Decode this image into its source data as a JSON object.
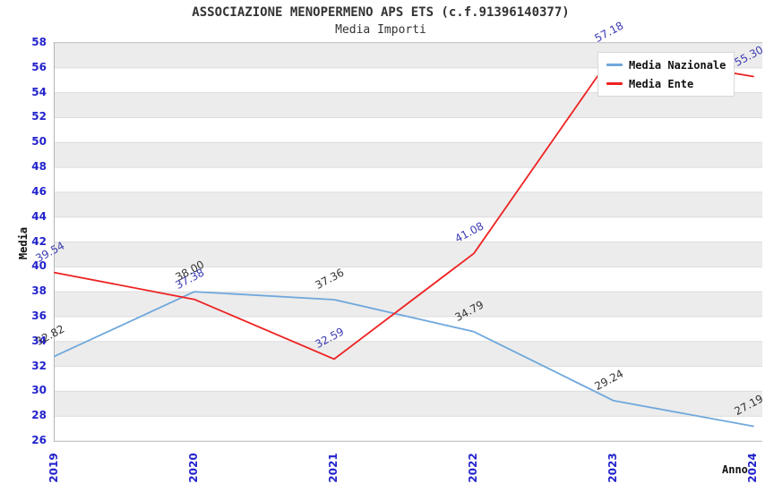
{
  "header": {
    "title": "ASSOCIAZIONE MENOPERMENO APS ETS (c.f.91396140377)",
    "subtitle": "Media Importi"
  },
  "chart_data": {
    "type": "line",
    "title": "ASSOCIAZIONE MENOPERMENO APS ETS (c.f.91396140377)",
    "subtitle": "Media Importi",
    "xlabel": "Anno",
    "ylabel": "Media",
    "x": [
      "2019",
      "2020",
      "2021",
      "2022",
      "2023",
      "2024"
    ],
    "yticks": [
      26,
      28,
      30,
      32,
      34,
      36,
      38,
      40,
      42,
      44,
      46,
      48,
      50,
      52,
      54,
      56,
      58
    ],
    "ylim": [
      26,
      58
    ],
    "grid": "alternating-horizontal-bands",
    "legend_position": "top-right",
    "series": [
      {
        "name": "Media Nazionale",
        "color": "#6fa8dc",
        "label_color": "#333333",
        "values": [
          32.82,
          38.0,
          37.36,
          34.79,
          29.24,
          27.19
        ],
        "labels": [
          "32.82",
          "38.00",
          "37.36",
          "34.79",
          "29.24",
          "27.19"
        ]
      },
      {
        "name": "Media Ente",
        "color": "#ee2222",
        "label_color": "#3b3bb4",
        "values": [
          39.54,
          37.38,
          32.59,
          41.08,
          57.18,
          55.3
        ],
        "labels": [
          "39.54",
          "37.38",
          "32.59",
          "41.08",
          "57.18",
          "55.30"
        ]
      }
    ]
  },
  "colors": {
    "background": "#ffffff",
    "band": "#ececec",
    "gridline": "#dcdcdc",
    "plot_border": "#b4b4b4",
    "tick_label": "#2323cc",
    "title_text": "#333333",
    "legend_border": "#d8d8d8"
  }
}
